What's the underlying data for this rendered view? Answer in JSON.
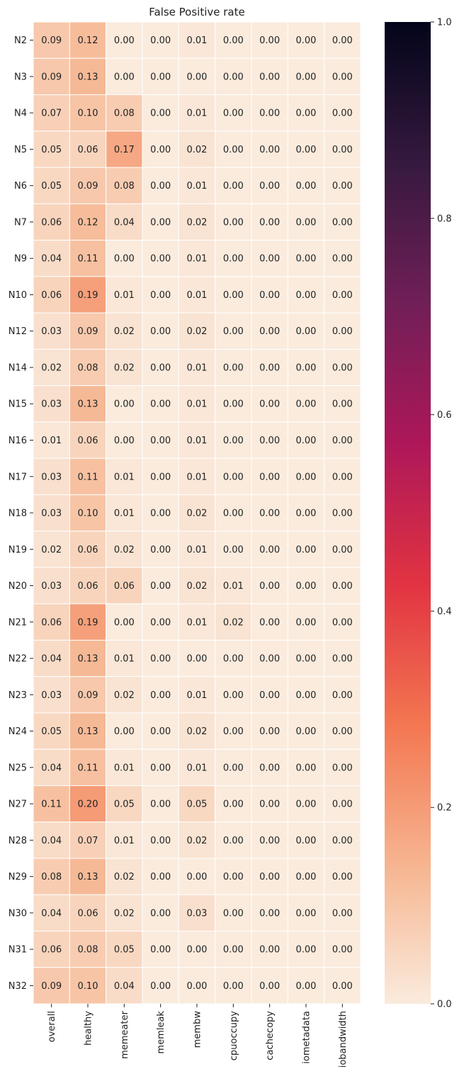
{
  "chart_data": {
    "type": "heatmap",
    "title": "False Positive rate",
    "rows": [
      "N2",
      "N3",
      "N4",
      "N5",
      "N6",
      "N7",
      "N9",
      "N10",
      "N12",
      "N14",
      "N15",
      "N16",
      "N17",
      "N18",
      "N19",
      "N20",
      "N21",
      "N22",
      "N23",
      "N24",
      "N25",
      "N27",
      "N28",
      "N29",
      "N30",
      "N31",
      "N32"
    ],
    "columns": [
      "overall",
      "healthy",
      "memeater",
      "memleak",
      "membw",
      "cpuoccupy",
      "cachecopy",
      "iometadata",
      "iobandwidth"
    ],
    "values": [
      [
        0.09,
        0.12,
        0.0,
        0.0,
        0.01,
        0.0,
        0.0,
        0.0,
        0.0
      ],
      [
        0.09,
        0.13,
        0.0,
        0.0,
        0.0,
        0.0,
        0.0,
        0.0,
        0.0
      ],
      [
        0.07,
        0.1,
        0.08,
        0.0,
        0.01,
        0.0,
        0.0,
        0.0,
        0.0
      ],
      [
        0.05,
        0.06,
        0.17,
        0.0,
        0.02,
        0.0,
        0.0,
        0.0,
        0.0
      ],
      [
        0.05,
        0.09,
        0.08,
        0.0,
        0.01,
        0.0,
        0.0,
        0.0,
        0.0
      ],
      [
        0.06,
        0.12,
        0.04,
        0.0,
        0.02,
        0.0,
        0.0,
        0.0,
        0.0
      ],
      [
        0.04,
        0.11,
        0.0,
        0.0,
        0.01,
        0.0,
        0.0,
        0.0,
        0.0
      ],
      [
        0.06,
        0.19,
        0.01,
        0.0,
        0.01,
        0.0,
        0.0,
        0.0,
        0.0
      ],
      [
        0.03,
        0.09,
        0.02,
        0.0,
        0.02,
        0.0,
        0.0,
        0.0,
        0.0
      ],
      [
        0.02,
        0.08,
        0.02,
        0.0,
        0.01,
        0.0,
        0.0,
        0.0,
        0.0
      ],
      [
        0.03,
        0.13,
        0.0,
        0.0,
        0.01,
        0.0,
        0.0,
        0.0,
        0.0
      ],
      [
        0.01,
        0.06,
        0.0,
        0.0,
        0.01,
        0.0,
        0.0,
        0.0,
        0.0
      ],
      [
        0.03,
        0.11,
        0.01,
        0.0,
        0.01,
        0.0,
        0.0,
        0.0,
        0.0
      ],
      [
        0.03,
        0.1,
        0.01,
        0.0,
        0.02,
        0.0,
        0.0,
        0.0,
        0.0
      ],
      [
        0.02,
        0.06,
        0.02,
        0.0,
        0.01,
        0.0,
        0.0,
        0.0,
        0.0
      ],
      [
        0.03,
        0.06,
        0.06,
        0.0,
        0.02,
        0.01,
        0.0,
        0.0,
        0.0
      ],
      [
        0.06,
        0.19,
        0.0,
        0.0,
        0.01,
        0.02,
        0.0,
        0.0,
        0.0
      ],
      [
        0.04,
        0.13,
        0.01,
        0.0,
        0.0,
        0.0,
        0.0,
        0.0,
        0.0
      ],
      [
        0.03,
        0.09,
        0.02,
        0.0,
        0.01,
        0.0,
        0.0,
        0.0,
        0.0
      ],
      [
        0.05,
        0.13,
        0.0,
        0.0,
        0.02,
        0.0,
        0.0,
        0.0,
        0.0
      ],
      [
        0.04,
        0.11,
        0.01,
        0.0,
        0.01,
        0.0,
        0.0,
        0.0,
        0.0
      ],
      [
        0.11,
        0.2,
        0.05,
        0.0,
        0.05,
        0.0,
        0.0,
        0.0,
        0.0
      ],
      [
        0.04,
        0.07,
        0.01,
        0.0,
        0.02,
        0.0,
        0.0,
        0.0,
        0.0
      ],
      [
        0.08,
        0.13,
        0.02,
        0.0,
        0.0,
        0.0,
        0.0,
        0.0,
        0.0
      ],
      [
        0.04,
        0.06,
        0.02,
        0.0,
        0.03,
        0.0,
        0.0,
        0.0,
        0.0
      ],
      [
        0.06,
        0.08,
        0.05,
        0.0,
        0.0,
        0.0,
        0.0,
        0.0,
        0.0
      ],
      [
        0.09,
        0.1,
        0.04,
        0.0,
        0.0,
        0.0,
        0.0,
        0.0,
        0.0
      ]
    ],
    "value_format": "0.00",
    "colorbar": {
      "min": 0.0,
      "max": 1.0,
      "ticks": [
        "0.0",
        "0.2",
        "0.4",
        "0.6",
        "0.8",
        "1.0"
      ],
      "colormap": "rocket_r",
      "color_stops": [
        "#faebdd",
        "#f6b48f",
        "#f37651",
        "#e13342",
        "#ad1759",
        "#701f57",
        "#35193e",
        "#03051a"
      ]
    },
    "grid_line_color": "#ffffff"
  }
}
